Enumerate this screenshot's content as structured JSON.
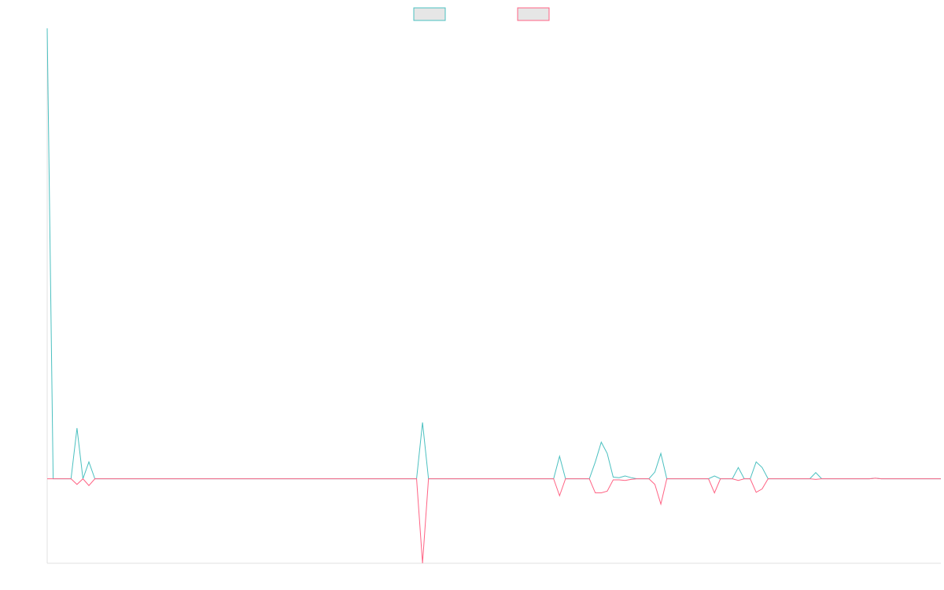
{
  "chart_data": {
    "type": "line",
    "title": "",
    "xlabel": "",
    "ylabel": "",
    "grid": false,
    "legend_position": "top-center",
    "x_count": 151,
    "ylim": [
      -15,
      80
    ],
    "series": [
      {
        "color": "#4bc0c0",
        "points": [
          [
            0,
            80
          ],
          [
            1,
            0
          ],
          [
            2,
            0
          ],
          [
            3,
            0
          ],
          [
            4,
            0
          ],
          [
            5,
            9
          ],
          [
            6,
            0
          ],
          [
            7,
            3
          ],
          [
            8,
            0
          ],
          [
            62,
            0
          ],
          [
            63,
            10
          ],
          [
            64,
            0
          ],
          [
            85,
            0
          ],
          [
            86,
            4
          ],
          [
            87,
            0
          ],
          [
            91,
            0
          ],
          [
            92,
            3
          ],
          [
            93,
            6.5
          ],
          [
            94,
            4.5
          ],
          [
            95,
            0.3
          ],
          [
            96,
            0.2
          ],
          [
            97,
            0.5
          ],
          [
            98,
            0.2
          ],
          [
            99,
            0
          ],
          [
            100,
            0
          ],
          [
            101,
            0
          ],
          [
            102,
            1.2
          ],
          [
            103,
            4.5
          ],
          [
            104,
            0
          ],
          [
            111,
            0
          ],
          [
            112,
            0.5
          ],
          [
            113,
            0
          ],
          [
            115,
            0
          ],
          [
            116,
            2
          ],
          [
            117,
            0
          ],
          [
            118,
            0
          ],
          [
            119,
            3
          ],
          [
            120,
            2
          ],
          [
            121,
            0
          ],
          [
            128,
            0
          ],
          [
            129,
            1.1
          ],
          [
            130,
            0
          ],
          [
            138,
            0
          ],
          [
            139,
            0.1
          ],
          [
            140,
            0
          ],
          [
            150,
            0
          ]
        ]
      },
      {
        "color": "#ff6384",
        "points": [
          [
            0,
            0
          ],
          [
            1,
            0
          ],
          [
            2,
            0
          ],
          [
            3,
            0
          ],
          [
            4,
            0
          ],
          [
            5,
            -1
          ],
          [
            6,
            0
          ],
          [
            7,
            -1.2
          ],
          [
            8,
            0
          ],
          [
            62,
            0
          ],
          [
            63,
            -15
          ],
          [
            64,
            0
          ],
          [
            85,
            0
          ],
          [
            86,
            -3
          ],
          [
            87,
            0
          ],
          [
            91,
            0
          ],
          [
            92,
            -2.5
          ],
          [
            93,
            -2.5
          ],
          [
            94,
            -2.2
          ],
          [
            95,
            -0.2
          ],
          [
            96,
            -0.2
          ],
          [
            97,
            -0.3
          ],
          [
            98,
            -0.1
          ],
          [
            99,
            0
          ],
          [
            100,
            0
          ],
          [
            101,
            0
          ],
          [
            102,
            -1
          ],
          [
            103,
            -4.5
          ],
          [
            104,
            0
          ],
          [
            111,
            0
          ],
          [
            112,
            -2.5
          ],
          [
            113,
            0
          ],
          [
            115,
            0
          ],
          [
            116,
            -0.3
          ],
          [
            117,
            0
          ],
          [
            118,
            0
          ],
          [
            119,
            -2.4
          ],
          [
            120,
            -1.8
          ],
          [
            121,
            0
          ],
          [
            128,
            0
          ],
          [
            129,
            -0.1
          ],
          [
            130,
            0
          ],
          [
            138,
            0
          ],
          [
            139,
            0.1
          ],
          [
            140,
            0
          ],
          [
            150,
            0
          ]
        ]
      }
    ]
  }
}
